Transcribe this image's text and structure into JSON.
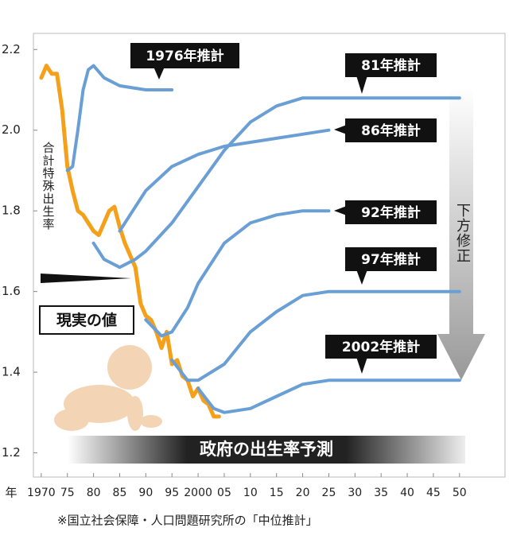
{
  "chart_data": {
    "type": "line",
    "y_label": "合計特殊出生率",
    "x_unit": "年",
    "band_label": "政府の出生率予測",
    "arrow_label": "下方修正",
    "footnote": "※国立社会保障・人口問題研究所の「中位推計」",
    "xlim": [
      1968.5,
      2058.7
    ],
    "ylim": [
      1.14,
      2.24
    ],
    "yticks": [
      1.2,
      1.4,
      1.6,
      1.8,
      {
        "value": 2,
        "label": "2.0"
      },
      2.2
    ],
    "xticks": [
      {
        "value": 1970,
        "label": "1970"
      },
      {
        "value": 1975,
        "label": "75"
      },
      {
        "value": 1980,
        "label": "80"
      },
      {
        "value": 1985,
        "label": "85"
      },
      {
        "value": 1990,
        "label": "90"
      },
      {
        "value": 1995,
        "label": "95"
      },
      {
        "value": 2000,
        "label": "2000"
      },
      {
        "value": 2005,
        "label": "05"
      },
      {
        "value": 2010,
        "label": "10"
      },
      {
        "value": 2015,
        "label": "15"
      },
      {
        "value": 2020,
        "label": "20"
      },
      {
        "value": 2025,
        "label": "25"
      },
      {
        "value": 2030,
        "label": "30"
      },
      {
        "value": 2035,
        "label": "35"
      },
      {
        "value": 2040,
        "label": "40"
      },
      {
        "value": 2045,
        "label": "45"
      },
      {
        "value": 2050,
        "label": "50"
      }
    ],
    "series": [
      {
        "name": "現実の値",
        "color": "#f5a01a",
        "x": [
          1970,
          1971,
          1972,
          1973,
          1974,
          1975,
          1976,
          1977,
          1978,
          1979,
          1980,
          1981,
          1982,
          1983,
          1984,
          1985,
          1986,
          1987,
          1988,
          1989,
          1990,
          1991,
          1992,
          1993,
          1994,
          1995,
          1996,
          1997,
          1998,
          1999,
          2000,
          2001,
          2002,
          2003,
          2004
        ],
        "values": [
          2.13,
          2.16,
          2.14,
          2.14,
          2.05,
          1.91,
          1.85,
          1.8,
          1.79,
          1.77,
          1.75,
          1.74,
          1.77,
          1.8,
          1.81,
          1.76,
          1.72,
          1.69,
          1.66,
          1.57,
          1.54,
          1.53,
          1.5,
          1.46,
          1.5,
          1.42,
          1.43,
          1.39,
          1.38,
          1.34,
          1.36,
          1.33,
          1.32,
          1.29,
          1.29
        ]
      },
      {
        "name": "1976年推計",
        "color": "#6a9fd6",
        "x": [
          1975,
          1976,
          1977,
          1978,
          1979,
          1980,
          1982,
          1985,
          1990,
          1995
        ],
        "values": [
          1.9,
          1.91,
          2.0,
          2.1,
          2.15,
          2.16,
          2.13,
          2.11,
          2.1,
          2.1
        ]
      },
      {
        "name": "81年推計",
        "color": "#6a9fd6",
        "x": [
          1980,
          1982,
          1985,
          1988,
          1990,
          1995,
          2000,
          2005,
          2010,
          2015,
          2020,
          2025,
          2030,
          2040,
          2050
        ],
        "values": [
          1.72,
          1.68,
          1.66,
          1.68,
          1.7,
          1.77,
          1.86,
          1.95,
          2.02,
          2.06,
          2.08,
          2.08,
          2.08,
          2.08,
          2.08
        ]
      },
      {
        "name": "86年推計",
        "color": "#6a9fd6",
        "x": [
          1985,
          1990,
          1995,
          2000,
          2005,
          2010,
          2015,
          2020,
          2025
        ],
        "values": [
          1.75,
          1.85,
          1.91,
          1.94,
          1.96,
          1.97,
          1.98,
          1.99,
          2.0
        ]
      },
      {
        "name": "92年推計",
        "color": "#6a9fd6",
        "x": [
          1990,
          1993,
          1995,
          1998,
          2000,
          2005,
          2010,
          2015,
          2020,
          2025
        ],
        "values": [
          1.53,
          1.49,
          1.5,
          1.56,
          1.62,
          1.72,
          1.77,
          1.79,
          1.8,
          1.8
        ]
      },
      {
        "name": "97年推計",
        "color": "#6a9fd6",
        "x": [
          1995,
          1998,
          2000,
          2005,
          2010,
          2015,
          2020,
          2025,
          2030,
          2040,
          2050
        ],
        "values": [
          1.43,
          1.38,
          1.38,
          1.42,
          1.5,
          1.55,
          1.59,
          1.6,
          1.6,
          1.6,
          1.6
        ]
      },
      {
        "name": "2002年推計",
        "color": "#6a9fd6",
        "x": [
          2000,
          2003,
          2005,
          2010,
          2015,
          2020,
          2025,
          2030,
          2040,
          2050
        ],
        "values": [
          1.36,
          1.31,
          1.3,
          1.31,
          1.34,
          1.37,
          1.38,
          1.38,
          1.38,
          1.38
        ]
      }
    ]
  }
}
